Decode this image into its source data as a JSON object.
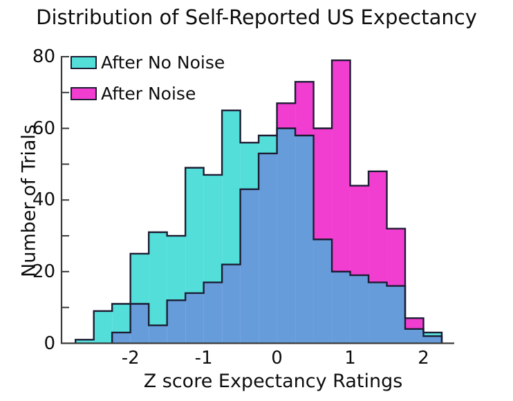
{
  "title": "Distribution of Self-Reported US Expectancy",
  "x_axis": {
    "label": "Z score Expectancy Ratings",
    "ticks": [
      -2,
      -1,
      0,
      1,
      2
    ],
    "tick_labels": [
      "-2",
      "-1",
      "0",
      "1",
      "2"
    ],
    "lim": [
      -2.95,
      2.42
    ]
  },
  "y_axis": {
    "label": "Number of Trials",
    "ticks": [
      0,
      20,
      40,
      60,
      80
    ],
    "tick_labels": [
      "0",
      "20",
      "40",
      "60",
      "80"
    ],
    "minor_ticks": [
      10,
      30,
      50,
      70
    ],
    "lim": [
      0,
      80
    ]
  },
  "legend": {
    "entries": [
      {
        "label": "After No Noise",
        "color": "#53DED9"
      },
      {
        "label": "After Noise",
        "color": "#F23DD1"
      }
    ]
  },
  "chart_data": {
    "type": "bar",
    "subtype": "overlaid-step-histogram",
    "title": "Distribution of Self-Reported US Expectancy",
    "xlabel": "Z score Expectancy Ratings",
    "ylabel": "Number of Trials",
    "xlim": [
      -2.95,
      2.42
    ],
    "ylim": [
      0,
      80
    ],
    "grid": false,
    "legend_position": "top-left-inside",
    "bin_width": 0.25,
    "bin_edges": [
      -2.75,
      -2.5,
      -2.25,
      -2.0,
      -1.75,
      -1.5,
      -1.25,
      -1.0,
      -0.75,
      -0.5,
      -0.25,
      0.0,
      0.25,
      0.5,
      0.75,
      1.0,
      1.25,
      1.5,
      1.75,
      2.0,
      2.25
    ],
    "series": [
      {
        "name": "After No Noise",
        "color": "#53DED9",
        "values": [
          1,
          9,
          11,
          25,
          31,
          30,
          49,
          47,
          65,
          56,
          58,
          60,
          58,
          29,
          20,
          19,
          17,
          16,
          4,
          3
        ]
      },
      {
        "name": "After Noise",
        "color": "#F23DD1",
        "values": [
          0,
          0,
          3,
          11,
          5,
          12,
          14,
          17,
          22,
          43,
          53,
          67,
          73,
          60,
          79,
          44,
          48,
          32,
          7,
          2
        ]
      }
    ],
    "overlap_color": "#679CDB",
    "edge_color": "#1c1c33",
    "axis_color": "#3a3a3a"
  }
}
